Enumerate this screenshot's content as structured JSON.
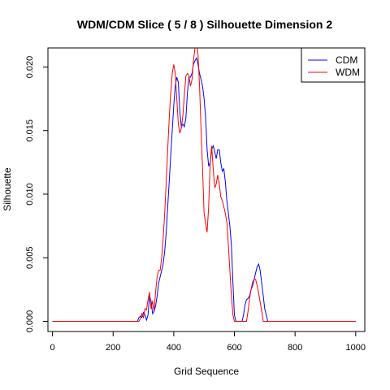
{
  "chart_data": {
    "type": "line",
    "title": "WDM/CDM Slice ( 5 / 8 )  Silhouette Dimension 2",
    "xlabel": "Grid Sequence",
    "ylabel": "Silhouette",
    "xlim": [
      -15,
      1030
    ],
    "ylim": [
      -0.0008,
      0.0215
    ],
    "x_ticks": [
      0,
      200,
      400,
      600,
      800,
      1000
    ],
    "x_tick_labels": [
      "0",
      "200",
      "400",
      "600",
      "800",
      "1000"
    ],
    "y_ticks": [
      0.0,
      0.005,
      0.01,
      0.015,
      0.02
    ],
    "y_tick_labels": [
      "0.000",
      "0.005",
      "0.010",
      "0.015",
      "0.020"
    ],
    "grid": false,
    "legend": {
      "position": "top-right",
      "entries": [
        "CDM",
        "WDM"
      ]
    },
    "series": [
      {
        "name": "CDM",
        "color": "#0000ff",
        "points": [
          [
            0,
            0
          ],
          [
            280,
            0
          ],
          [
            285,
            0.0003
          ],
          [
            290,
            0.0004
          ],
          [
            295,
            0.0003
          ],
          [
            300,
            0.0007
          ],
          [
            305,
            0.0005
          ],
          [
            310,
            0.0001
          ],
          [
            315,
            0.0005
          ],
          [
            320,
            0.002
          ],
          [
            325,
            0.0016
          ],
          [
            330,
            0.0006
          ],
          [
            335,
            0.0008
          ],
          [
            340,
            0.0012
          ],
          [
            345,
            0.002
          ],
          [
            350,
            0.003
          ],
          [
            355,
            0.0035
          ],
          [
            360,
            0.004
          ],
          [
            365,
            0.0045
          ],
          [
            370,
            0.0055
          ],
          [
            375,
            0.007
          ],
          [
            380,
            0.009
          ],
          [
            385,
            0.011
          ],
          [
            390,
            0.013
          ],
          [
            395,
            0.015
          ],
          [
            400,
            0.017
          ],
          [
            405,
            0.0185
          ],
          [
            410,
            0.0192
          ],
          [
            415,
            0.0188
          ],
          [
            420,
            0.0165
          ],
          [
            425,
            0.0153
          ],
          [
            430,
            0.0155
          ],
          [
            435,
            0.0153
          ],
          [
            440,
            0.016
          ],
          [
            445,
            0.018
          ],
          [
            450,
            0.0192
          ],
          [
            455,
            0.0192
          ],
          [
            460,
            0.0195
          ],
          [
            465,
            0.0202
          ],
          [
            470,
            0.0205
          ],
          [
            475,
            0.0207
          ],
          [
            480,
            0.0202
          ],
          [
            485,
            0.0195
          ],
          [
            490,
            0.019
          ],
          [
            495,
            0.0185
          ],
          [
            500,
            0.0175
          ],
          [
            505,
            0.016
          ],
          [
            510,
            0.0135
          ],
          [
            515,
            0.0122
          ],
          [
            520,
            0.0125
          ],
          [
            525,
            0.0135
          ],
          [
            530,
            0.0138
          ],
          [
            535,
            0.0133
          ],
          [
            540,
            0.0128
          ],
          [
            545,
            0.0135
          ],
          [
            550,
            0.0135
          ],
          [
            555,
            0.0125
          ],
          [
            560,
            0.0118
          ],
          [
            565,
            0.012
          ],
          [
            570,
            0.011
          ],
          [
            575,
            0.0095
          ],
          [
            580,
            0.0085
          ],
          [
            585,
            0.0075
          ],
          [
            590,
            0.006
          ],
          [
            595,
            0.003
          ],
          [
            600,
            0.0005
          ],
          [
            605,
            0
          ],
          [
            625,
            0
          ],
          [
            630,
            0.0005
          ],
          [
            635,
            0.0013
          ],
          [
            640,
            0.0017
          ],
          [
            645,
            0.0018
          ],
          [
            650,
            0.002
          ],
          [
            655,
            0.0025
          ],
          [
            660,
            0.0028
          ],
          [
            665,
            0.0033
          ],
          [
            670,
            0.0038
          ],
          [
            675,
            0.0043
          ],
          [
            680,
            0.0045
          ],
          [
            685,
            0.004
          ],
          [
            690,
            0.003
          ],
          [
            695,
            0.002
          ],
          [
            700,
            0.001
          ],
          [
            705,
            0.0005
          ],
          [
            710,
            0
          ],
          [
            1000,
            0
          ]
        ]
      },
      {
        "name": "WDM",
        "color": "#ff0000",
        "points": [
          [
            0,
            0
          ],
          [
            285,
            0
          ],
          [
            290,
            0.0002
          ],
          [
            295,
            0.0006
          ],
          [
            300,
            0.0003
          ],
          [
            305,
            0.001
          ],
          [
            310,
            0.0009
          ],
          [
            315,
            0.0017
          ],
          [
            320,
            0.0023
          ],
          [
            325,
            0.001
          ],
          [
            330,
            0.0016
          ],
          [
            335,
            0.0008
          ],
          [
            340,
            0.0023
          ],
          [
            345,
            0.0035
          ],
          [
            350,
            0.004
          ],
          [
            355,
            0.004
          ],
          [
            360,
            0.005
          ],
          [
            365,
            0.0065
          ],
          [
            370,
            0.0085
          ],
          [
            375,
            0.011
          ],
          [
            380,
            0.0135
          ],
          [
            385,
            0.016
          ],
          [
            390,
            0.018
          ],
          [
            395,
            0.0195
          ],
          [
            400,
            0.0202
          ],
          [
            405,
            0.0195
          ],
          [
            410,
            0.0175
          ],
          [
            415,
            0.0155
          ],
          [
            420,
            0.0148
          ],
          [
            425,
            0.0152
          ],
          [
            430,
            0.0162
          ],
          [
            435,
            0.0178
          ],
          [
            440,
            0.0193
          ],
          [
            445,
            0.0195
          ],
          [
            450,
            0.0193
          ],
          [
            455,
            0.0185
          ],
          [
            460,
            0.019
          ],
          [
            465,
            0.0205
          ],
          [
            470,
            0.0215
          ],
          [
            475,
            0.022
          ],
          [
            480,
            0.021
          ],
          [
            485,
            0.0185
          ],
          [
            490,
            0.015
          ],
          [
            495,
            0.012
          ],
          [
            500,
            0.0085
          ],
          [
            505,
            0.0077
          ],
          [
            510,
            0.007
          ],
          [
            515,
            0.009
          ],
          [
            520,
            0.0125
          ],
          [
            525,
            0.0138
          ],
          [
            530,
            0.012
          ],
          [
            535,
            0.0105
          ],
          [
            540,
            0.0108
          ],
          [
            545,
            0.0115
          ],
          [
            550,
            0.0108
          ],
          [
            555,
            0.0098
          ],
          [
            560,
            0.0095
          ],
          [
            565,
            0.009
          ],
          [
            570,
            0.0085
          ],
          [
            575,
            0.0078
          ],
          [
            580,
            0.006
          ],
          [
            585,
            0.004
          ],
          [
            590,
            0.002
          ],
          [
            595,
            0.0005
          ],
          [
            600,
            0
          ],
          [
            640,
            0
          ],
          [
            645,
            0.0008
          ],
          [
            650,
            0.0018
          ],
          [
            655,
            0.0025
          ],
          [
            660,
            0.0031
          ],
          [
            665,
            0.0033
          ],
          [
            670,
            0.0033
          ],
          [
            675,
            0.0028
          ],
          [
            680,
            0.0022
          ],
          [
            685,
            0.0015
          ],
          [
            690,
            0.0008
          ],
          [
            695,
            0
          ],
          [
            1000,
            0
          ]
        ]
      }
    ]
  }
}
